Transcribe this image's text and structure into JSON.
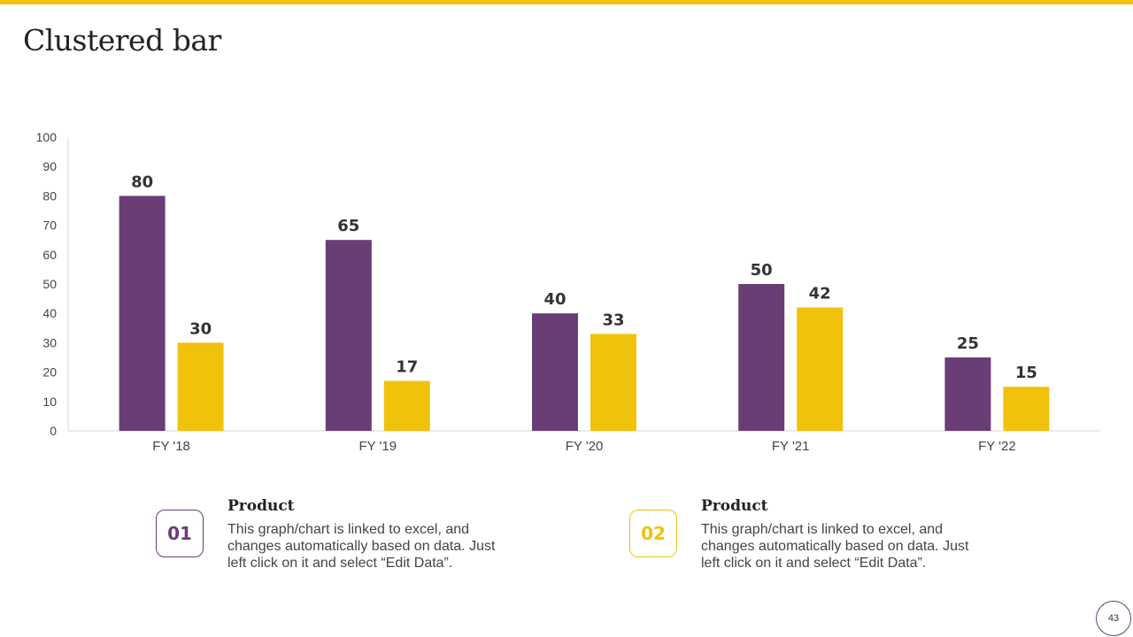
{
  "title": "Clustered bar",
  "colors": {
    "accent": "#f0c20b",
    "series1": "#6a3d76",
    "series2": "#f0c20b",
    "axis": "#d9d9d9"
  },
  "chart_data": {
    "type": "bar",
    "categories": [
      "FY '18",
      "FY '19",
      "FY '20",
      "FY '21",
      "FY '22"
    ],
    "series": [
      {
        "name": "Product 01",
        "values": [
          80,
          65,
          40,
          50,
          25
        ]
      },
      {
        "name": "Product 02",
        "values": [
          30,
          17,
          33,
          42,
          15
        ]
      }
    ],
    "ylim": [
      0,
      100
    ],
    "yticks": [
      0,
      10,
      20,
      30,
      40,
      50,
      60,
      70,
      80,
      90,
      100
    ],
    "title": "",
    "xlabel": "",
    "ylabel": "",
    "grid": false,
    "legend": "bottom"
  },
  "legend": [
    {
      "number": "01",
      "heading": "Product",
      "text": "This graph/chart is linked to excel, and changes automatically based on data. Just left click on it and select “Edit Data”."
    },
    {
      "number": "02",
      "heading": "Product",
      "text": "This graph/chart is linked to excel, and changes automatically based on data. Just left click on it and select “Edit Data”."
    }
  ],
  "page_number": "43"
}
